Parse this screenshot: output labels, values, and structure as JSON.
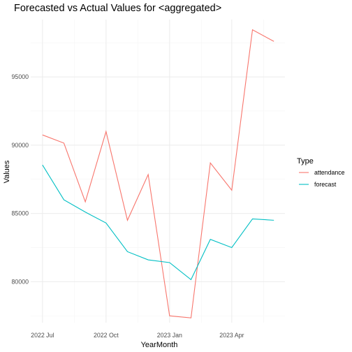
{
  "chart_data": {
    "type": "line",
    "title": "Forecasted vs Actual Values for <aggregated>",
    "xlabel": "YearMonth",
    "ylabel": "Values",
    "legend_title": "Type",
    "legend_position": "right",
    "grid": true,
    "x": [
      "2022-07",
      "2022-08",
      "2022-09",
      "2022-10",
      "2022-11",
      "2022-12",
      "2023-01",
      "2023-02",
      "2023-03",
      "2023-04",
      "2023-05",
      "2023-06"
    ],
    "x_ticks": [
      {
        "date": "2022-07",
        "label": "2022 Jul"
      },
      {
        "date": "2022-10",
        "label": "2022 Oct"
      },
      {
        "date": "2023-01",
        "label": "2023 Jan"
      },
      {
        "date": "2023-04",
        "label": "2023 Apr"
      }
    ],
    "y_ticks": [
      80000,
      85000,
      90000,
      95000
    ],
    "y_tick_labels": [
      "80000",
      "85000",
      "90000",
      "95000"
    ],
    "ylim": [
      77000,
      99200
    ],
    "xlim": [
      "2022-06-14",
      "2023-06-17"
    ],
    "series": [
      {
        "name": "attendance",
        "color": "#F8766D",
        "values": [
          90750,
          90150,
          85850,
          91000,
          84500,
          87850,
          77500,
          77350,
          88700,
          86700,
          98450,
          97600
        ]
      },
      {
        "name": "forecast",
        "color": "#00BFC4",
        "values": [
          88550,
          86000,
          85100,
          84300,
          82200,
          81600,
          81400,
          80150,
          83100,
          82500,
          84600,
          84500
        ]
      }
    ]
  }
}
